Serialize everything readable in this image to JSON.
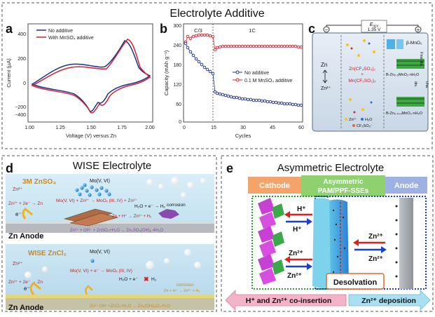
{
  "top_section": {
    "title": "Electrolyte Additive",
    "panel_a": {
      "letter": "a",
      "y_axis_label": "Current (µA)",
      "x_axis_label": "Voltage (V) versus Zn",
      "y_ticks": [
        "400",
        "200",
        "0",
        "−200",
        "−400"
      ],
      "x_ticks": [
        "1.00",
        "1.25",
        "1.50",
        "1.75",
        "2.00"
      ],
      "legend": [
        "No additive",
        "With MnSO₄ additive"
      ],
      "colors": {
        "no_additive": "#1f2f8f",
        "with_additive": "#d4202a"
      }
    },
    "panel_b": {
      "letter": "b",
      "y_axis_label": "Capacity (mAh g⁻¹)",
      "x_axis_label": "Cycles",
      "y_ticks": [
        "300",
        "240",
        "180",
        "120",
        "60",
        "0"
      ],
      "x_ticks": [
        "0",
        "15",
        "30",
        "45",
        "60"
      ],
      "rate_labels": [
        "C/3",
        "1C"
      ],
      "legend": [
        "No additive",
        "0.1 M MnSO₄ additive"
      ],
      "colors": {
        "no_additive": "#1f2f8f",
        "with_additive": "#d4202a"
      }
    },
    "panel_c": {
      "letter": "c",
      "voltage_symbol": "E",
      "voltage_subscript": "ocv",
      "voltage_value": "1.35 V",
      "minus_sign": "−",
      "plus_sign": "+",
      "labels": {
        "zn": "Zn",
        "zn2_arrow": "Zn²⁺",
        "salt1": "Zn(CF₃SO₃)₂",
        "plus": "+",
        "salt2": "Mn(CF₃SO₃)₂",
        "beta_mno2": "β-MnO₂",
        "phase1": "B-Zn₀.₅MnO₂·nH₂O",
        "phase2": "B-Zn₀.₅₊ₓMnO₂·nH₂O",
        "first_dis": "First dis.",
        "cha": "cha.",
        "dis": "dis.",
        "leg_zn": "Zn²⁺",
        "leg_h2o": "H₂O",
        "leg_cf3": "CF₃SO₃⁻"
      }
    }
  },
  "panel_d": {
    "letter": "d",
    "title": "WISE Electrolyte",
    "top": {
      "electrolyte": "3M ZnSO₄",
      "mo": "Mo(V, VI)",
      "zn2": "Zn²⁺",
      "reaction1": "Mo(V, VI) + Zn²⁺ → MoOₓ (III, IV) + Zn²⁺",
      "h2o_eq": "H₂O + e⁻ → H₂",
      "zn_eq": "Zn²⁺ + 2e⁻ → Zn",
      "electron": "e⁻",
      "hydrogen": "Zn + H⁺ → Zn²⁺ + H₂",
      "corrosion": "corrosion",
      "byproduct": "Zn²⁺ + OH⁻ + ZnSO₄+H₂O → Zn₄SO₄(OH)₆·4H₂O",
      "anode": "Zn Anode"
    },
    "bottom": {
      "electrolyte": "WISE ZnCl₂",
      "mo": "Mo(V, VI)",
      "zn2": "Zn²⁺",
      "reaction1": "Mo(V, VI) + e⁻ → MoOₓ (III, IV)",
      "h2o_eq": "H₂O + e⁻",
      "h2": "H₂",
      "zn_eq": "Zn²⁺ + 2e⁻ → Zn",
      "electron": "e⁻",
      "corrosion": "corrosion",
      "corrosion_eq": "Zn + H⁺ → Zn²⁺ + H₂",
      "byproduct": "Zn²⁺ OH⁻+ZnCl₂+H₂O → Zn₅(OH)₈Cl₂·H₂O",
      "anode": "Zn Anode"
    }
  },
  "panel_e": {
    "letter": "e",
    "title": "Asymmetric Electrolyte",
    "cathode": "Cathode",
    "middle_line1": "Asymmetric",
    "middle_line2": "PAM/PPF-SSEs",
    "anode": "Anode",
    "h_plus": "H⁺",
    "zn2": "Zn²⁺",
    "desolvation": "Desolvation",
    "bottom_left": "H⁺ and Zn²⁺ co-insertion",
    "bottom_right_ion": "Zn²⁺",
    "bottom_right_text": " deposition",
    "colors": {
      "cathode_bg": "#f4a46a",
      "middle_bg": "#8fd06f",
      "anode_bg": "#9fb1e3",
      "arrow_pink": "#f3b3c8",
      "arrow_blue": "#a9dff0"
    }
  }
}
